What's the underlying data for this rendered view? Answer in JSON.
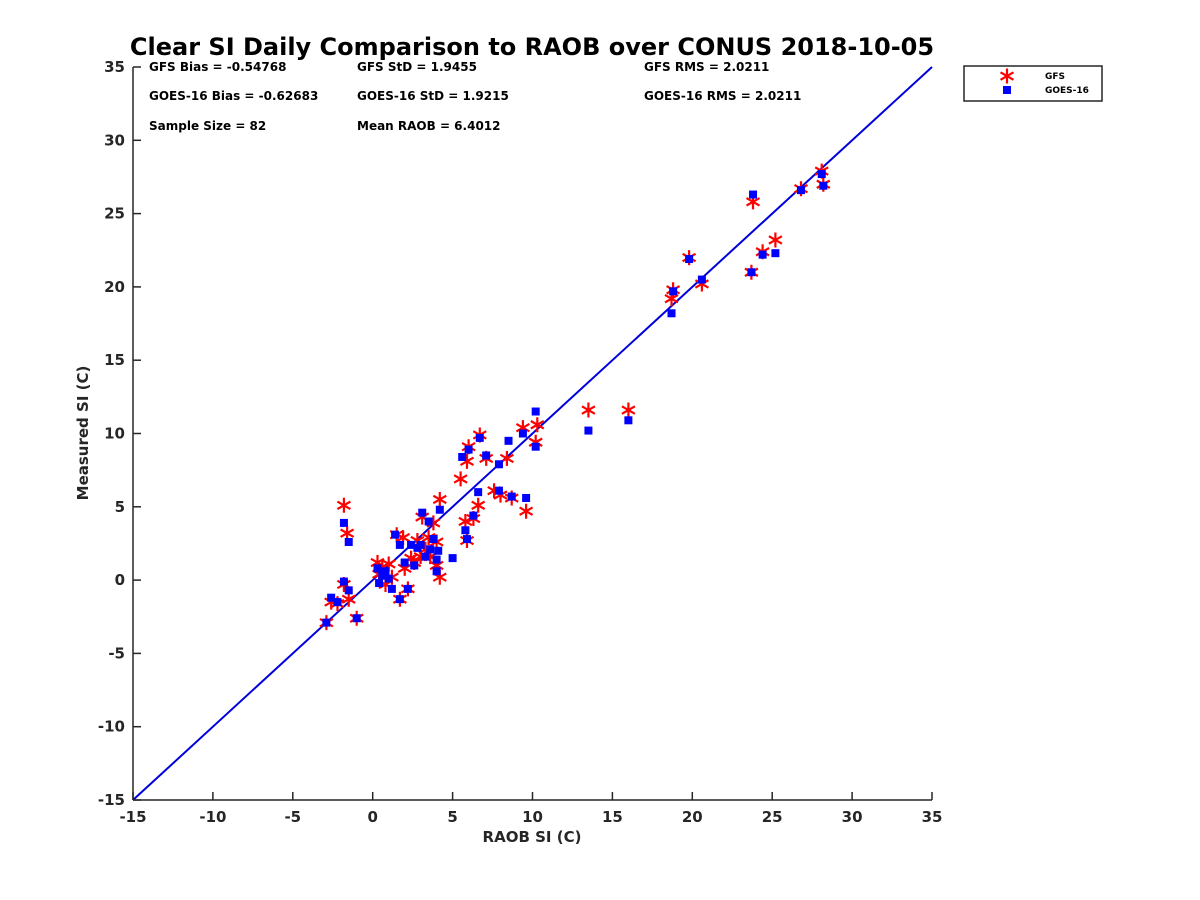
{
  "chart_data": {
    "type": "scatter",
    "title": "Clear SI Daily Comparison to RAOB over CONUS 2018-10-05",
    "xlabel": "RAOB SI (C)",
    "ylabel": "Measured SI (C)",
    "xlim": [
      -15,
      35
    ],
    "ylim": [
      -15,
      35
    ],
    "xticks": [
      -15,
      -10,
      -5,
      0,
      5,
      10,
      15,
      20,
      25,
      30,
      35
    ],
    "yticks": [
      -15,
      -10,
      -5,
      0,
      5,
      10,
      15,
      20,
      25,
      30,
      35
    ],
    "grid": false,
    "legend_position": "outside-top-right",
    "reference_line": {
      "from": [
        -15,
        -15
      ],
      "to": [
        35,
        35
      ],
      "color": "#0000dd"
    },
    "stats": [
      [
        "GFS Bias = -0.54768",
        "GFS StD = 1.9455",
        "GFS RMS = 2.0211"
      ],
      [
        "GOES-16 Bias = -0.62683",
        "GOES-16 StD = 1.9215",
        "GOES-16 RMS = 2.0211"
      ],
      [
        "Sample Size = 82",
        "Mean RAOB = 6.4012",
        ""
      ]
    ],
    "series": [
      {
        "name": "GFS",
        "marker": "asterisk",
        "color": "#ff0000",
        "points": [
          [
            -2.9,
            -2.9
          ],
          [
            -2.6,
            -1.5
          ],
          [
            -2.2,
            -1.6
          ],
          [
            -1.8,
            -0.3
          ],
          [
            -1.8,
            5.1
          ],
          [
            -1.6,
            3.2
          ],
          [
            -1.5,
            -1.3
          ],
          [
            -1.0,
            -2.6
          ],
          [
            0.3,
            1.2
          ],
          [
            0.4,
            0.4
          ],
          [
            0.6,
            0.9
          ],
          [
            0.8,
            -0.3
          ],
          [
            1.0,
            1.1
          ],
          [
            1.2,
            0.2
          ],
          [
            1.5,
            3.1
          ],
          [
            1.7,
            -1.3
          ],
          [
            1.9,
            2.9
          ],
          [
            2.0,
            0.8
          ],
          [
            2.2,
            -0.6
          ],
          [
            2.4,
            1.5
          ],
          [
            2.6,
            1.2
          ],
          [
            2.8,
            2.7
          ],
          [
            3.0,
            1.6
          ],
          [
            3.1,
            4.3
          ],
          [
            3.3,
            2.1
          ],
          [
            3.5,
            2.9
          ],
          [
            3.6,
            1.6
          ],
          [
            3.8,
            3.9
          ],
          [
            4.0,
            2.6
          ],
          [
            4.0,
            1.0
          ],
          [
            4.2,
            0.2
          ],
          [
            4.2,
            5.5
          ],
          [
            5.5,
            6.9
          ],
          [
            5.8,
            4.0
          ],
          [
            5.9,
            2.7
          ],
          [
            5.9,
            8.1
          ],
          [
            6.0,
            9.1
          ],
          [
            6.3,
            4.2
          ],
          [
            6.6,
            5.1
          ],
          [
            6.7,
            9.9
          ],
          [
            7.1,
            8.3
          ],
          [
            7.6,
            6.1
          ],
          [
            8.0,
            5.8
          ],
          [
            8.4,
            8.3
          ],
          [
            8.7,
            5.6
          ],
          [
            9.4,
            10.4
          ],
          [
            9.6,
            4.7
          ],
          [
            10.2,
            9.4
          ],
          [
            10.3,
            10.6
          ],
          [
            13.5,
            11.6
          ],
          [
            16.0,
            11.6
          ],
          [
            18.7,
            19.2
          ],
          [
            18.8,
            19.8
          ],
          [
            19.8,
            22.0
          ],
          [
            20.6,
            20.2
          ],
          [
            23.7,
            21.0
          ],
          [
            23.8,
            25.8
          ],
          [
            24.4,
            22.4
          ],
          [
            25.2,
            23.2
          ],
          [
            26.8,
            26.7
          ],
          [
            28.1,
            27.9
          ],
          [
            28.2,
            27.0
          ]
        ]
      },
      {
        "name": "GOES-16",
        "marker": "square",
        "color": "#0000ff",
        "points": [
          [
            -2.9,
            -2.9
          ],
          [
            -2.6,
            -1.2
          ],
          [
            -2.2,
            -1.5
          ],
          [
            -1.8,
            -0.1
          ],
          [
            -1.8,
            3.9
          ],
          [
            -1.5,
            2.6
          ],
          [
            -1.5,
            -0.7
          ],
          [
            -1.0,
            -2.6
          ],
          [
            0.3,
            0.8
          ],
          [
            0.4,
            -0.2
          ],
          [
            0.6,
            0.3
          ],
          [
            0.8,
            0.6
          ],
          [
            1.0,
            0.1
          ],
          [
            1.2,
            -0.6
          ],
          [
            1.4,
            3.1
          ],
          [
            1.7,
            -1.3
          ],
          [
            1.7,
            2.4
          ],
          [
            2.0,
            1.2
          ],
          [
            2.2,
            -0.6
          ],
          [
            2.4,
            2.4
          ],
          [
            2.6,
            1.0
          ],
          [
            2.8,
            2.2
          ],
          [
            3.0,
            2.4
          ],
          [
            3.1,
            4.6
          ],
          [
            3.3,
            1.6
          ],
          [
            3.5,
            4.0
          ],
          [
            3.6,
            2.1
          ],
          [
            3.8,
            2.8
          ],
          [
            4.0,
            1.4
          ],
          [
            4.0,
            0.6
          ],
          [
            4.1,
            2.0
          ],
          [
            4.2,
            4.8
          ],
          [
            5.0,
            1.5
          ],
          [
            5.6,
            8.4
          ],
          [
            5.8,
            3.4
          ],
          [
            5.9,
            2.8
          ],
          [
            6.0,
            8.9
          ],
          [
            6.3,
            4.4
          ],
          [
            6.6,
            6.0
          ],
          [
            6.7,
            9.7
          ],
          [
            7.1,
            8.5
          ],
          [
            7.9,
            6.1
          ],
          [
            7.9,
            7.9
          ],
          [
            8.5,
            9.5
          ],
          [
            8.7,
            5.7
          ],
          [
            9.4,
            10.0
          ],
          [
            9.6,
            5.6
          ],
          [
            10.2,
            9.1
          ],
          [
            10.2,
            11.5
          ],
          [
            13.5,
            10.2
          ],
          [
            16.0,
            10.9
          ],
          [
            18.7,
            18.2
          ],
          [
            18.8,
            19.7
          ],
          [
            19.8,
            21.9
          ],
          [
            20.6,
            20.5
          ],
          [
            23.7,
            21.0
          ],
          [
            23.8,
            26.3
          ],
          [
            24.4,
            22.2
          ],
          [
            25.2,
            22.3
          ],
          [
            26.8,
            26.6
          ],
          [
            28.1,
            27.7
          ],
          [
            28.2,
            26.9
          ]
        ]
      }
    ]
  }
}
